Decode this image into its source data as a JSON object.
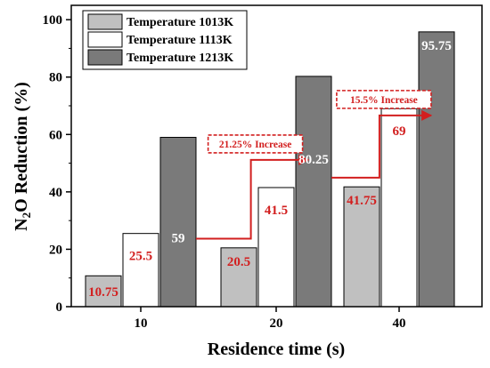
{
  "chart_data": {
    "type": "bar",
    "title": "",
    "xlabel": "Residence time (s)",
    "ylabel_parts": [
      "N",
      "2",
      "O Reduction (%)"
    ],
    "ylim": [
      0,
      105
    ],
    "yticks": [
      0,
      20,
      40,
      60,
      80,
      100
    ],
    "categories": [
      "10",
      "20",
      "40"
    ],
    "series": [
      {
        "name": "Temperature 1013K",
        "values": [
          10.75,
          20.5,
          41.75
        ],
        "color": "#c0c0c0",
        "label_color": "#d21f1f"
      },
      {
        "name": "Temperature 1113K",
        "values": [
          25.5,
          41.5,
          69
        ],
        "color": "#ffffff",
        "label_color": "#d21f1f"
      },
      {
        "name": "Temperature 1213K",
        "values": [
          59,
          80.25,
          95.75
        ],
        "color": "#7a7a7a",
        "label_color": "#ffffff"
      }
    ],
    "data_labels": [
      [
        "10.75",
        "20.5",
        "41.75"
      ],
      [
        "25.5",
        "41.5",
        "69"
      ],
      [
        "59",
        "80.25",
        "95.75"
      ]
    ],
    "annotations": [
      {
        "text": "21.25% Increase",
        "from_category": 0,
        "to_category": 1,
        "series": 2,
        "color": "#d21f1f"
      },
      {
        "text": "15.5% Increase",
        "from_category": 1,
        "to_category": 2,
        "series": 2,
        "color": "#d21f1f"
      }
    ],
    "legend": "top-left",
    "grid": false
  }
}
